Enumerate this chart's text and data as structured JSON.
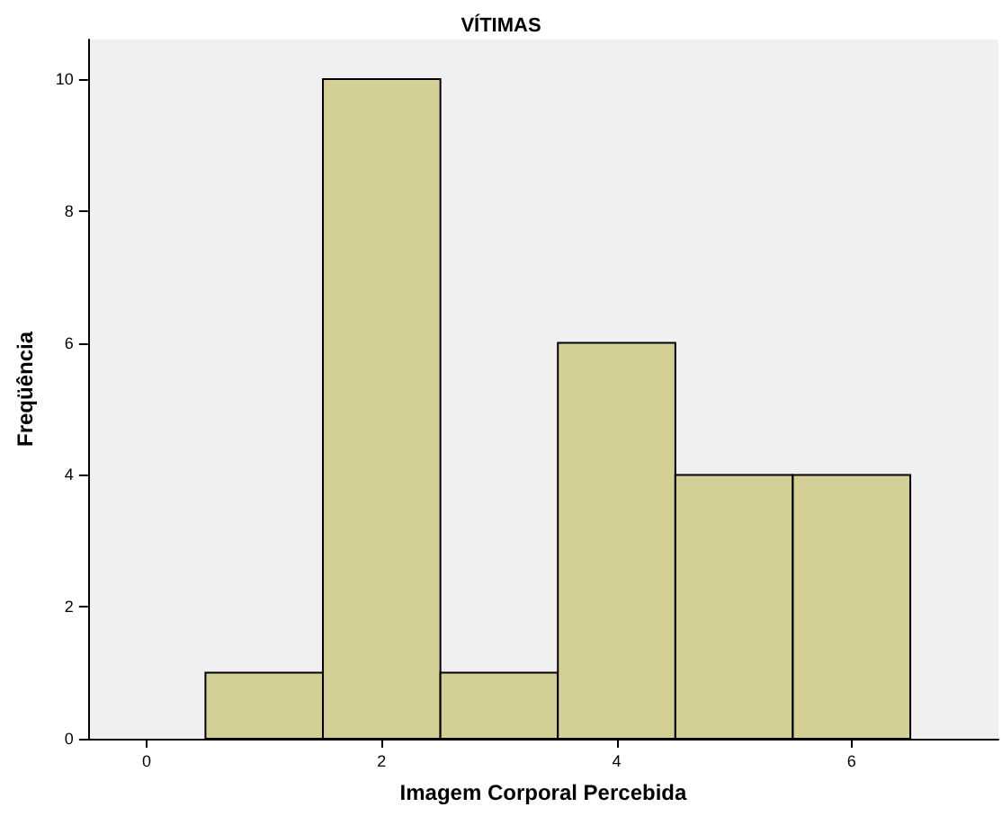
{
  "chart_data": {
    "type": "histogram",
    "title": "VÍTIMAS",
    "xlabel": "Imagem Corporal Percebida",
    "ylabel": "Freqüência",
    "bins": [
      0.5,
      1.5,
      2.5,
      3.5,
      4.5,
      5.5,
      6.5
    ],
    "values": [
      1,
      10,
      1,
      6,
      4,
      4
    ],
    "color": "#d4cf96",
    "xlim": [
      -0.5,
      7.25
    ],
    "xticks": [
      0,
      2,
      4,
      6
    ],
    "ylim": [
      0,
      10.6
    ],
    "yticks": [
      0,
      2,
      4,
      6,
      8,
      10
    ],
    "grid": false
  }
}
